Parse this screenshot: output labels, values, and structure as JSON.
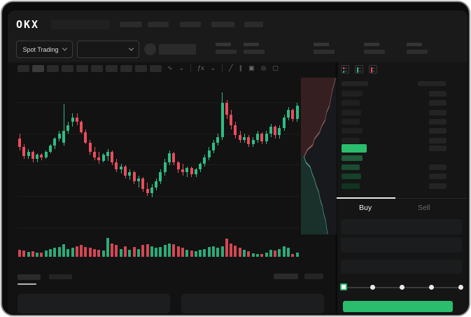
{
  "top_nav": {
    "brand": "OKX",
    "nav_skeleton_count": 5
  },
  "market_bar": {
    "mode_selector": {
      "label": "Spot Trading"
    },
    "pair_dropdown": {
      "value": ""
    },
    "stat_skeleton_count": 5
  },
  "chart_toolbar": {
    "interval_skeleton_count": 10,
    "icons": [
      "candle-style-icon",
      "chevron-down-icon",
      "sep",
      "indicators-fx-icon",
      "chevron-down-icon",
      "sep",
      "line-tool-icon",
      "parallel-lines-icon",
      "camera-icon",
      "clock-icon",
      "fullscreen-icon"
    ]
  },
  "colors": {
    "up_green": "#2ebd85",
    "down_red": "#eb4d5c",
    "accent_green": "#2abd6e",
    "depth_ask_fill": "rgba(125,45,48,0.30)",
    "depth_ask_line": "#8a5a5a",
    "depth_bid_fill": "rgba(28,88,68,0.38)",
    "depth_bid_line": "#4e8d7c"
  },
  "chart_data": [
    {
      "type": "candlestick",
      "title": "",
      "note": "values are relative price levels 0-100 read from chart pixels",
      "colors": {
        "up": "#2ebd85",
        "down": "#eb4d5c"
      },
      "candles": [
        [
          61,
          64,
          53,
          55
        ],
        [
          55,
          57,
          47,
          49
        ],
        [
          49,
          54,
          47,
          52
        ],
        [
          52,
          53,
          45,
          47
        ],
        [
          47,
          51,
          45,
          50
        ],
        [
          50,
          51,
          46,
          48
        ],
        [
          48,
          53,
          47,
          52
        ],
        [
          52,
          57,
          51,
          56
        ],
        [
          56,
          62,
          54,
          61
        ],
        [
          61,
          66,
          59,
          64
        ],
        [
          58,
          84,
          56,
          66
        ],
        [
          66,
          72,
          64,
          70
        ],
        [
          72,
          78,
          69,
          75
        ],
        [
          75,
          78,
          70,
          72
        ],
        [
          72,
          73,
          64,
          65
        ],
        [
          65,
          67,
          57,
          58
        ],
        [
          58,
          60,
          50,
          52
        ],
        [
          52,
          55,
          46,
          48
        ],
        [
          48,
          52,
          44,
          46
        ],
        [
          46,
          51,
          45,
          50
        ],
        [
          49,
          54,
          46,
          52
        ],
        [
          52,
          53,
          43,
          45
        ],
        [
          45,
          47,
          38,
          40
        ],
        [
          40,
          44,
          37,
          42
        ],
        [
          42,
          43,
          34,
          36
        ],
        [
          36,
          40,
          33,
          38
        ],
        [
          38,
          39,
          30,
          32
        ],
        [
          32,
          36,
          28,
          34
        ],
        [
          34,
          35,
          25,
          27
        ],
        [
          27,
          31,
          22,
          24
        ],
        [
          24,
          30,
          21,
          28
        ],
        [
          28,
          34,
          26,
          32
        ],
        [
          32,
          40,
          30,
          38
        ],
        [
          38,
          47,
          36,
          45
        ],
        [
          45,
          53,
          43,
          51
        ],
        [
          51,
          52,
          43,
          45
        ],
        [
          45,
          46,
          38,
          40
        ],
        [
          40,
          44,
          36,
          38
        ],
        [
          38,
          42,
          35,
          41
        ],
        [
          41,
          42,
          35,
          37
        ],
        [
          37,
          41,
          35,
          40
        ],
        [
          40,
          45,
          38,
          44
        ],
        [
          44,
          50,
          42,
          48
        ],
        [
          48,
          55,
          46,
          53
        ],
        [
          53,
          60,
          51,
          58
        ],
        [
          58,
          64,
          56,
          62
        ],
        [
          62,
          92,
          60,
          85
        ],
        [
          85,
          87,
          74,
          77
        ],
        [
          77,
          80,
          67,
          70
        ],
        [
          70,
          72,
          61,
          63
        ],
        [
          63,
          66,
          58,
          60
        ],
        [
          60,
          64,
          58,
          62
        ],
        [
          62,
          63,
          55,
          57
        ],
        [
          57,
          62,
          55,
          60
        ],
        [
          60,
          66,
          58,
          64
        ],
        [
          64,
          65,
          57,
          59
        ],
        [
          59,
          66,
          57,
          64
        ],
        [
          64,
          71,
          62,
          69
        ],
        [
          69,
          70,
          61,
          63
        ],
        [
          63,
          70,
          61,
          68
        ],
        [
          68,
          77,
          66,
          75
        ],
        [
          75,
          82,
          73,
          80
        ],
        [
          80,
          81,
          72,
          74
        ],
        [
          74,
          85,
          72,
          83
        ]
      ],
      "gridline_offsets": [
        31,
        76,
        120,
        165,
        210
      ]
    },
    {
      "type": "bar",
      "name": "volume",
      "note": "relative heights 0-100, colored by candle direction",
      "values": [
        35,
        30,
        22,
        28,
        20,
        18,
        30,
        38,
        45,
        50,
        65,
        40,
        45,
        55,
        60,
        50,
        45,
        40,
        35,
        30,
        100,
        70,
        60,
        40,
        55,
        35,
        50,
        38,
        60,
        65,
        55,
        45,
        50,
        60,
        70,
        65,
        55,
        45,
        35,
        30,
        28,
        35,
        40,
        50,
        55,
        48,
        55,
        95,
        70,
        58,
        45,
        35,
        28,
        15,
        12,
        10,
        20,
        35,
        30,
        40,
        55,
        45,
        12,
        20
      ]
    },
    {
      "type": "area",
      "name": "depth",
      "asks_line": [
        [
          0.97,
          0
        ],
        [
          0.93,
          0.04
        ],
        [
          0.88,
          0.08
        ],
        [
          0.84,
          0.13
        ],
        [
          0.8,
          0.18
        ],
        [
          0.72,
          0.22
        ],
        [
          0.68,
          0.27
        ],
        [
          0.58,
          0.31
        ],
        [
          0.52,
          0.35
        ],
        [
          0.38,
          0.39
        ],
        [
          0.33,
          0.43
        ],
        [
          0.18,
          0.46
        ],
        [
          0.1,
          0.5
        ]
      ],
      "bids_line": [
        [
          0.08,
          0.5
        ],
        [
          0.14,
          0.54
        ],
        [
          0.26,
          0.57
        ],
        [
          0.31,
          0.61
        ],
        [
          0.38,
          0.65
        ],
        [
          0.43,
          0.69
        ],
        [
          0.5,
          0.73
        ],
        [
          0.54,
          0.78
        ],
        [
          0.6,
          0.82
        ],
        [
          0.64,
          0.87
        ],
        [
          0.69,
          0.91
        ],
        [
          0.72,
          0.96
        ],
        [
          0.75,
          1
        ]
      ]
    }
  ],
  "order_book": {
    "view_modes": [
      {
        "icon": "orderbook-combined-icon"
      },
      {
        "icon": "orderbook-bids-icon"
      },
      {
        "icon": "orderbook-asks-icon"
      }
    ],
    "asks": [
      {
        "l": 30,
        "r": 25
      },
      {
        "l": 26,
        "r": 25
      },
      {
        "l": 28,
        "r": 25
      },
      {
        "l": 26,
        "r": 25
      },
      {
        "l": 30,
        "r": 25
      },
      {
        "l": 26,
        "r": 25
      }
    ],
    "last_price": {
      "highlight_color": "#2abd6e"
    },
    "bids": [
      {
        "l": 30,
        "r": 0,
        "color": "#1e5c3b"
      },
      {
        "l": 26,
        "r": 25,
        "color": "#1a4c32"
      },
      {
        "l": 28,
        "r": 25,
        "color": "#15402a"
      },
      {
        "l": 26,
        "r": 25,
        "color": "#113322"
      }
    ]
  },
  "trade_tabs": {
    "items": [
      {
        "label": "Buy",
        "active": true
      },
      {
        "label": "Sell",
        "active": false
      }
    ]
  },
  "trade_form": {
    "input_count": 3,
    "slider": {
      "stops": 5,
      "active_index": 0
    },
    "submit_button": {
      "label": "",
      "color": "#2abd6e"
    }
  }
}
